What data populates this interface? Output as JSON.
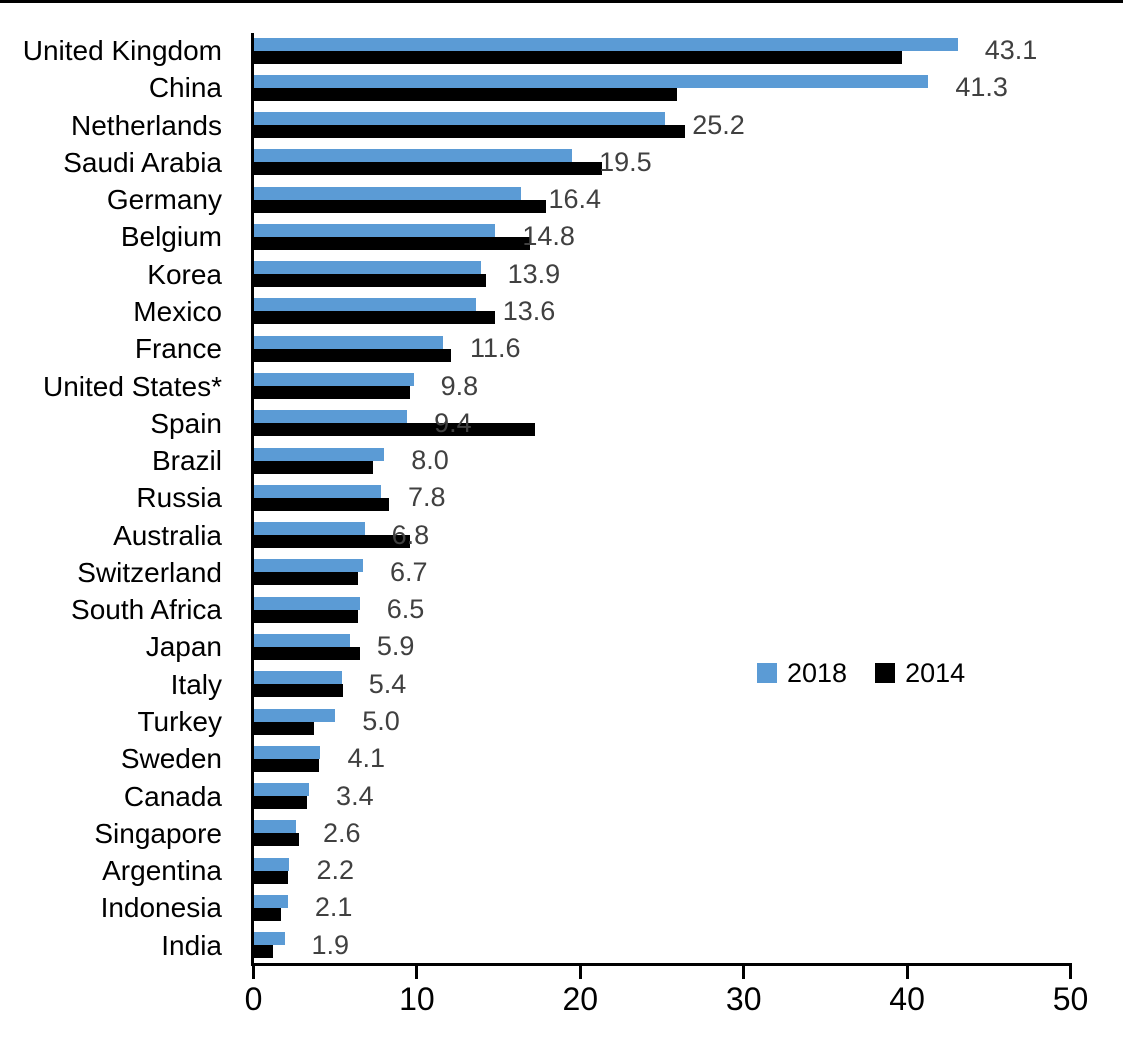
{
  "chart_data": {
    "type": "bar",
    "orientation": "horizontal",
    "title": "",
    "xlabel": "",
    "ylabel": "",
    "categories": [
      "United Kingdom",
      "China",
      "Netherlands",
      "Saudi Arabia",
      "Germany",
      "Belgium",
      "Korea",
      "Mexico",
      "France",
      "United States*",
      "Spain",
      "Brazil",
      "Russia",
      "Australia",
      "Switzerland",
      "South Africa",
      "Japan",
      "Italy",
      "Turkey",
      "Sweden",
      "Canada",
      "Singapore",
      "Argentina",
      "Indonesia",
      "India"
    ],
    "series": [
      {
        "name": "2018",
        "color": "#5B9BD5",
        "values": [
          43.1,
          41.3,
          25.2,
          19.5,
          16.4,
          14.8,
          13.9,
          13.6,
          11.6,
          9.8,
          9.4,
          8.0,
          7.8,
          6.8,
          6.7,
          6.5,
          5.9,
          5.4,
          5.0,
          4.1,
          3.4,
          2.6,
          2.2,
          2.1,
          1.9
        ],
        "data_labels": [
          "43.1",
          "41.3",
          "25.2",
          "19.5",
          "16.4",
          "14.8",
          "13.9",
          "13.6",
          "11.6",
          "9.8",
          "9.4",
          "8.0",
          "7.8",
          "6.8",
          "6.7",
          "6.5",
          "5.9",
          "5.4",
          "5.0",
          "4.1",
          "3.4",
          "2.6",
          "2.2",
          "2.1",
          "1.9"
        ],
        "labels_shown": true
      },
      {
        "name": "2014",
        "color": "#000000",
        "values": [
          39.7,
          25.9,
          26.4,
          21.3,
          17.9,
          16.9,
          14.2,
          14.8,
          12.1,
          9.6,
          17.2,
          7.3,
          8.3,
          9.6,
          6.4,
          6.4,
          6.5,
          5.5,
          3.7,
          4.0,
          3.3,
          2.8,
          2.1,
          1.7,
          1.2
        ],
        "labels_shown": false
      }
    ],
    "x_ticks": [
      "0",
      "10",
      "20",
      "30",
      "40",
      "50"
    ],
    "x_tick_values": [
      0,
      10,
      20,
      30,
      40,
      50
    ],
    "xlim": [
      0,
      50
    ],
    "grid": false,
    "legend_entries": [
      "2018",
      "2014"
    ],
    "legend_position": "center-right",
    "value_label_color": "#404040",
    "axis_color": "#000000",
    "background_color": "#FFFFFF"
  }
}
